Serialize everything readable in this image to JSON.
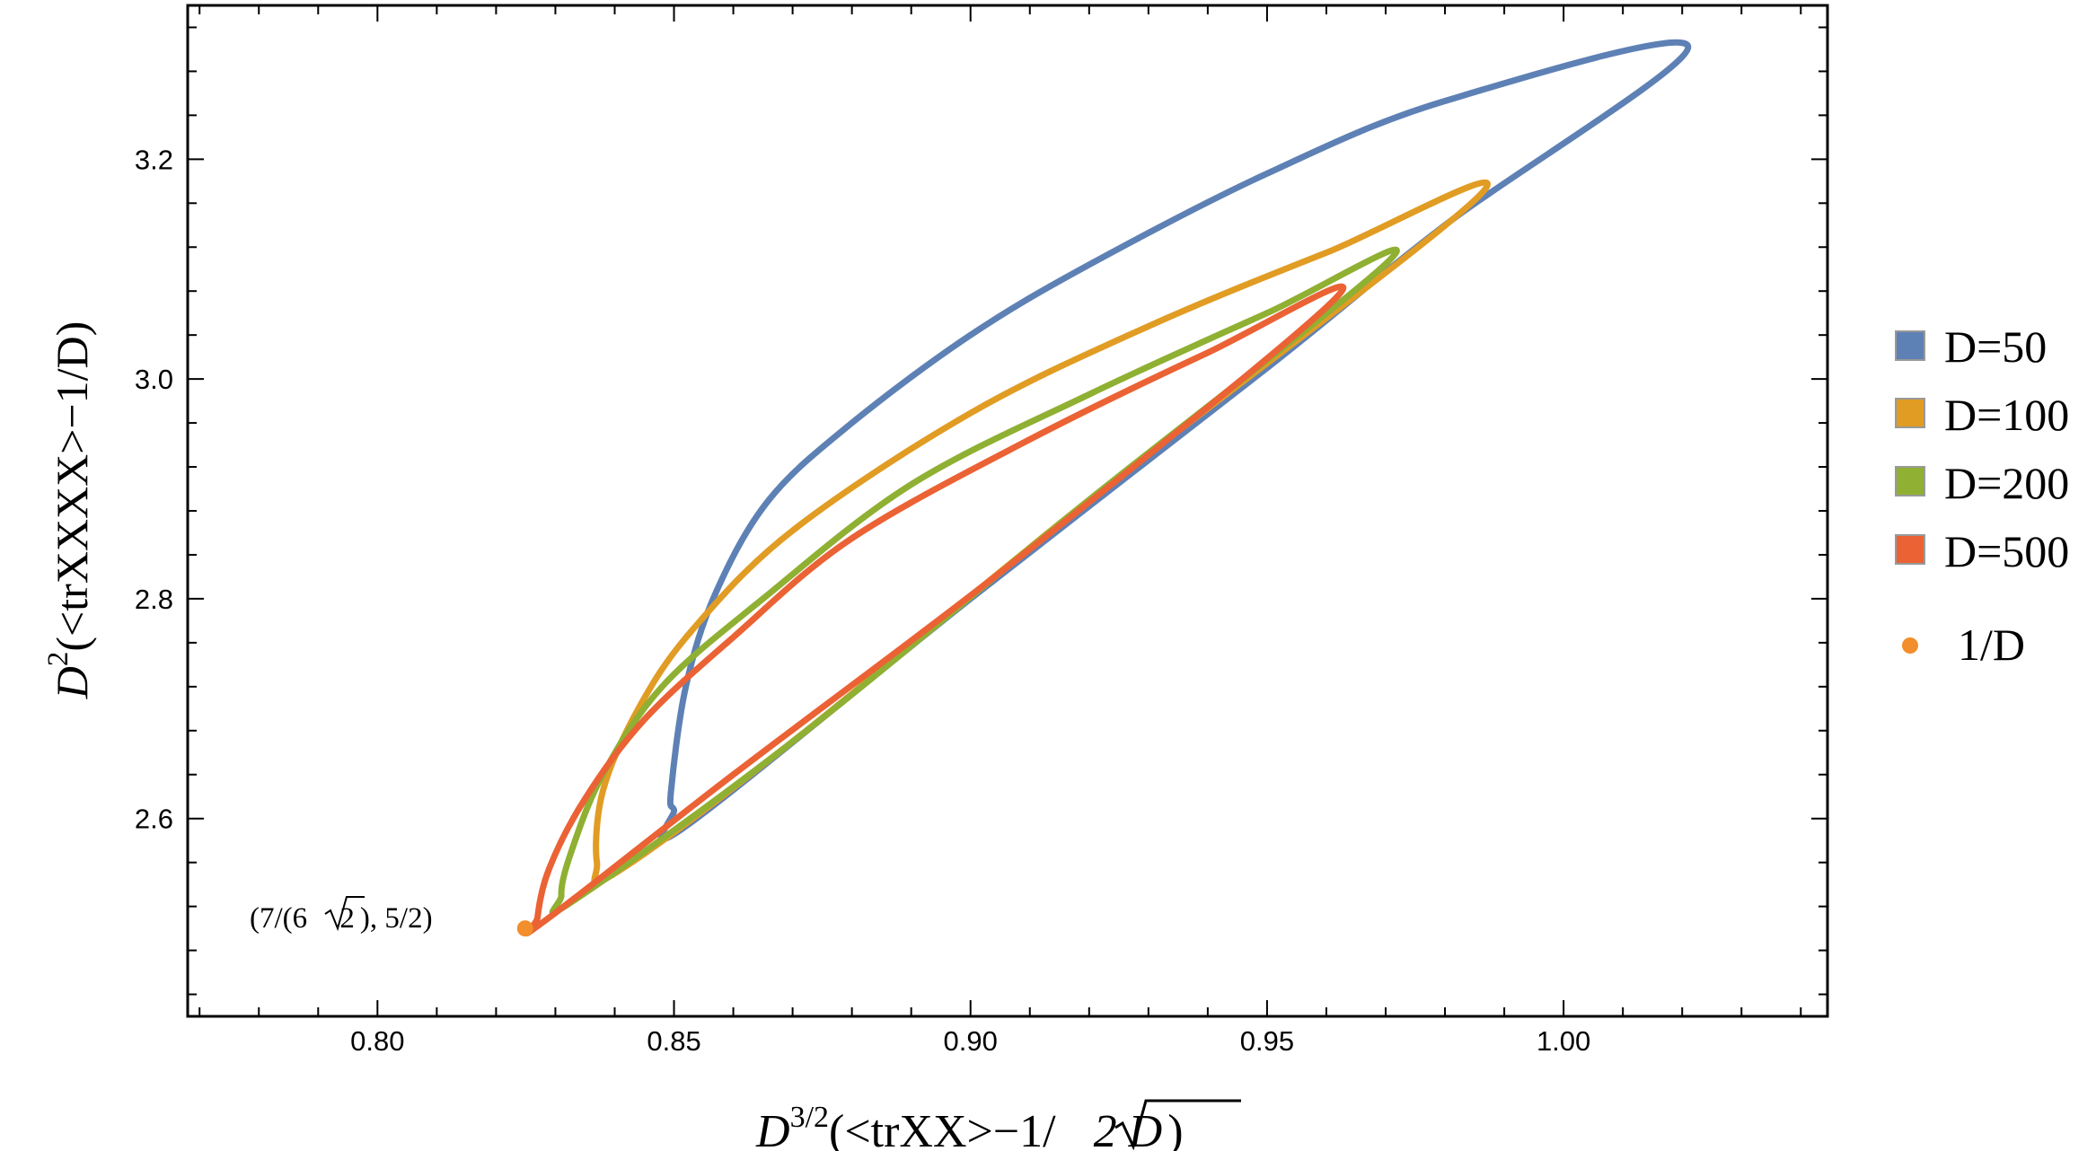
{
  "chart_data": {
    "type": "line",
    "xlabel": {
      "prefix": "D",
      "superscript": "3/2",
      "text": "(<trXX>−1/",
      "radicand": "2 D",
      "suffix": ")"
    },
    "ylabel": {
      "prefix": "D",
      "superscript": "2",
      "text": "(<trXXXX>−1/D)"
    },
    "xlim": [
      0.768,
      1.0445
    ],
    "ylim": [
      2.42,
      3.34
    ],
    "xticks": [
      "0.80",
      "0.85",
      "0.90",
      "0.95",
      "1.00"
    ],
    "yticks": [
      "2.6",
      "2.8",
      "3.0",
      "3.2"
    ],
    "grid": false,
    "legend_position": "right",
    "series": [
      {
        "name": "D=50",
        "color": "#5E81B5",
        "points": [
          [
            0.852,
            2.593
          ],
          [
            0.9,
            2.8
          ],
          [
            0.95,
            3.01
          ],
          [
            0.98,
            3.14
          ],
          [
            1.021,
            3.302
          ],
          [
            0.98,
            3.253
          ],
          [
            0.95,
            3.187
          ],
          [
            0.92,
            3.104
          ],
          [
            0.9,
            3.04
          ],
          [
            0.88,
            2.96
          ],
          [
            0.866,
            2.89
          ],
          [
            0.857,
            2.805
          ],
          [
            0.852,
            2.72
          ],
          [
            0.8495,
            2.625
          ],
          [
            0.85,
            2.608
          ]
        ]
      },
      {
        "name": "D=100",
        "color": "#E19C24",
        "points": [
          [
            0.84,
            2.55
          ],
          [
            0.87,
            2.67
          ],
          [
            0.92,
            2.89
          ],
          [
            0.986,
            3.168
          ],
          [
            0.96,
            3.115
          ],
          [
            0.93,
            3.048
          ],
          [
            0.9,
            2.969
          ],
          [
            0.87,
            2.862
          ],
          [
            0.853,
            2.771
          ],
          [
            0.844,
            2.7
          ],
          [
            0.838,
            2.625
          ],
          [
            0.837,
            2.56
          ]
        ]
      },
      {
        "name": "D=200",
        "color": "#8FB032",
        "points": [
          [
            0.833,
            2.525
          ],
          [
            0.87,
            2.67
          ],
          [
            0.92,
            2.89
          ],
          [
            0.971,
            3.11
          ],
          [
            0.95,
            3.06
          ],
          [
            0.92,
            2.986
          ],
          [
            0.89,
            2.904
          ],
          [
            0.865,
            2.8
          ],
          [
            0.848,
            2.72
          ],
          [
            0.838,
            2.64
          ],
          [
            0.8325,
            2.567
          ],
          [
            0.831,
            2.53
          ]
        ]
      },
      {
        "name": "D=500",
        "color": "#EB6235",
        "points": [
          [
            0.828,
            2.506
          ],
          [
            0.86,
            2.64
          ],
          [
            0.91,
            2.845
          ],
          [
            0.962,
            3.076
          ],
          [
            0.94,
            3.024
          ],
          [
            0.91,
            2.945
          ],
          [
            0.88,
            2.855
          ],
          [
            0.86,
            2.765
          ],
          [
            0.845,
            2.69
          ],
          [
            0.835,
            2.618
          ],
          [
            0.829,
            2.555
          ],
          [
            0.827,
            2.51
          ]
        ]
      }
    ],
    "point_series": {
      "name": "1/D",
      "color": "#F28E2B",
      "points": [
        [
          0.8249,
          2.5
        ]
      ]
    },
    "annotation": {
      "text_before": "(7/(6 ",
      "radicand": "2",
      "text_after": "), 5/2)"
    }
  }
}
